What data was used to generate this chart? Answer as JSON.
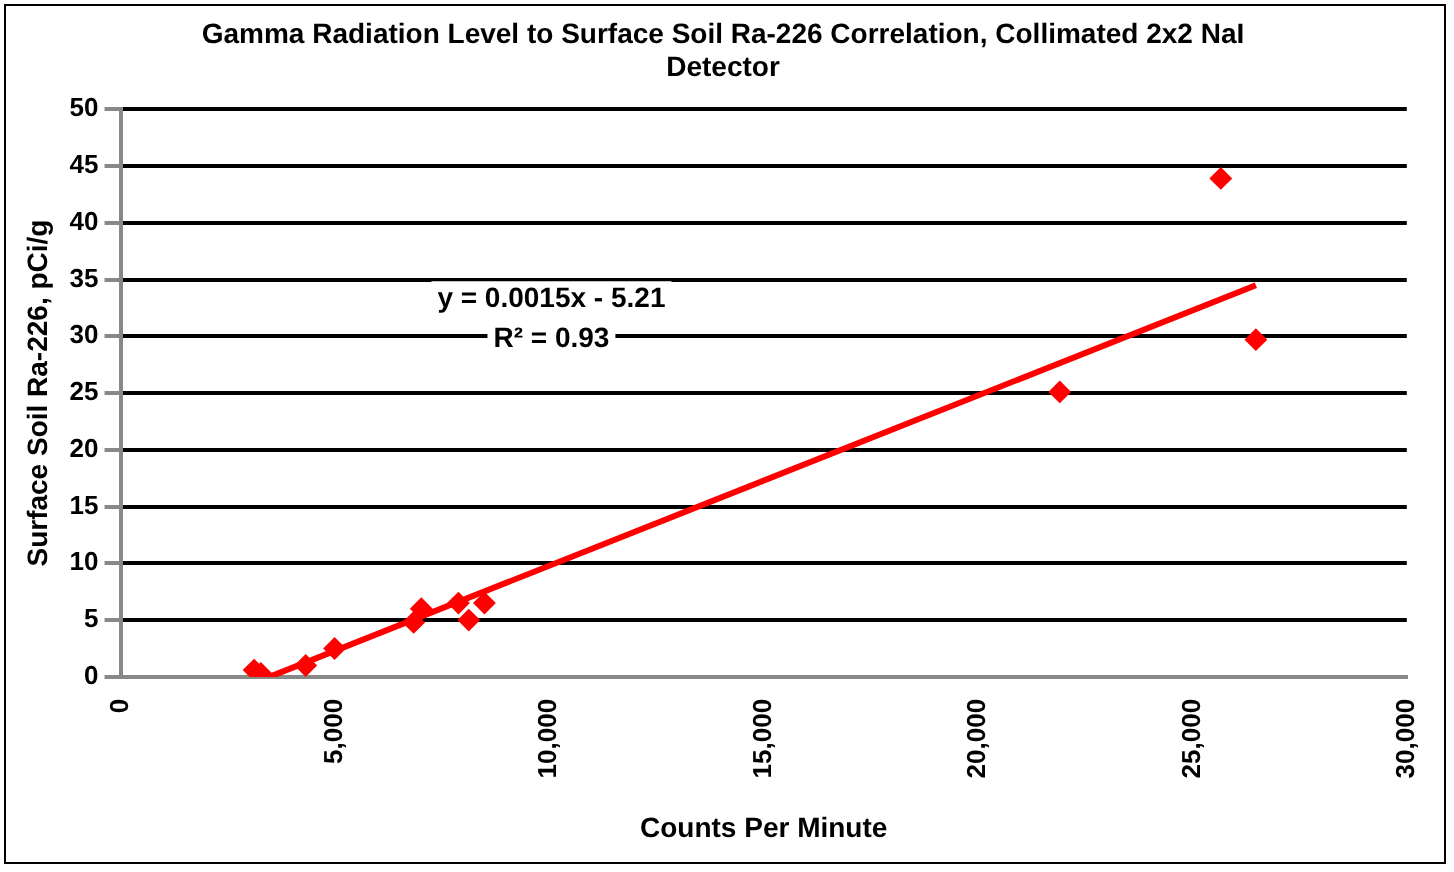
{
  "chart_data": {
    "type": "scatter",
    "title": "Gamma Radiation Level to Surface Soil Ra-226 Correlation, Collimated 2x2 NaI Detector",
    "xlabel": "Counts Per Minute",
    "ylabel": "Surface Soil Ra-226, pCi/g",
    "series": [
      {
        "type": "scatter",
        "color": "#ff0000",
        "marker": "diamond",
        "x": [
          3115,
          3274,
          4319,
          4993,
          6837,
          7015,
          7882,
          8122,
          8488,
          21906,
          25662,
          26480
        ],
        "values": [
          0.6,
          0.3,
          1.0,
          2.5,
          4.8,
          6.0,
          6.5,
          5.0,
          6.5,
          25.1,
          43.9,
          29.7
        ]
      },
      {
        "type": "line",
        "color": "#ff0000",
        "marker": "none",
        "x": [
          3473,
          26480
        ],
        "values": [
          0,
          34.5
        ]
      }
    ],
    "xlim": [
      0,
      30000
    ],
    "xticks": [
      0,
      {
        "value": 5000,
        "label": "5,000"
      },
      {
        "value": 10000,
        "label": "10,000"
      },
      {
        "value": 15000,
        "label": "15,000"
      },
      {
        "value": 20000,
        "label": "20,000"
      },
      {
        "value": 25000,
        "label": "25,000"
      },
      {
        "value": 30000,
        "label": "30,000"
      }
    ],
    "ylim": [
      0,
      50
    ],
    "yticks": [
      0,
      5,
      10,
      15,
      20,
      25,
      30,
      35,
      40,
      45,
      50
    ],
    "grid": "y",
    "legend": false,
    "annotations": [
      "y = 0.0015x - 5.21",
      "R² = 0.93"
    ]
  }
}
